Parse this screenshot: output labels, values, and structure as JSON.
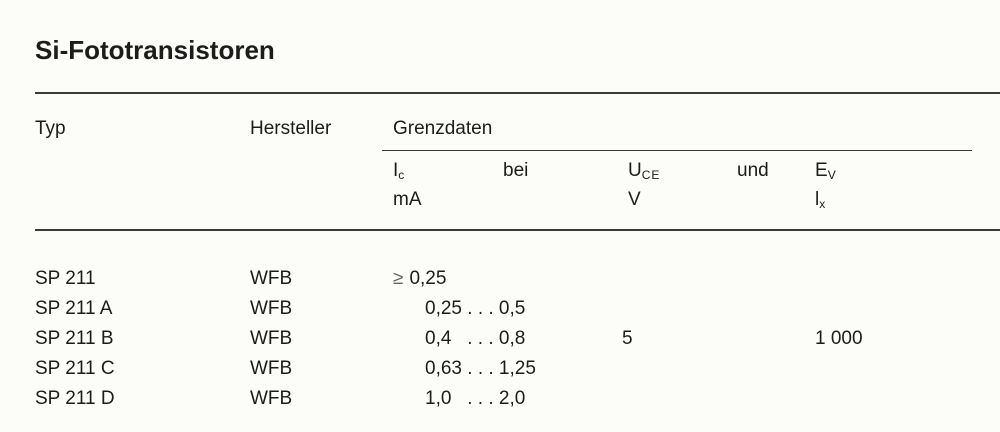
{
  "title": "Si-Fototransistoren",
  "header": {
    "typ": "Typ",
    "hersteller": "Hersteller",
    "grenzdaten": "Grenzdaten",
    "ic_symbol": "I",
    "ic_sub": "c",
    "ic_unit": "mA",
    "bei": "bei",
    "uce_symbol": "U",
    "uce_sub": "CE",
    "uce_unit": "V",
    "und": "und",
    "ev_symbol": "E",
    "ev_sub": "V",
    "ev_unit_symbol": "l",
    "ev_unit_sub": "x"
  },
  "rows": [
    {
      "typ": "SP 211",
      "hersteller": "WFB",
      "ic_prefix": "≥",
      "ic": "0,25"
    },
    {
      "typ": "SP 211 A",
      "hersteller": "WFB",
      "ic": "0,25 . . . 0,5"
    },
    {
      "typ": "SP 211 B",
      "hersteller": "WFB",
      "ic": "0,4   . . . 0,8"
    },
    {
      "typ": "SP 211 C",
      "hersteller": "WFB",
      "ic": "0,63 . . . 1,25"
    },
    {
      "typ": "SP 211 D",
      "hersteller": "WFB",
      "ic": "1,0   . . . 2,0"
    }
  ],
  "shared": {
    "uce": "5",
    "ev": "1 000"
  }
}
